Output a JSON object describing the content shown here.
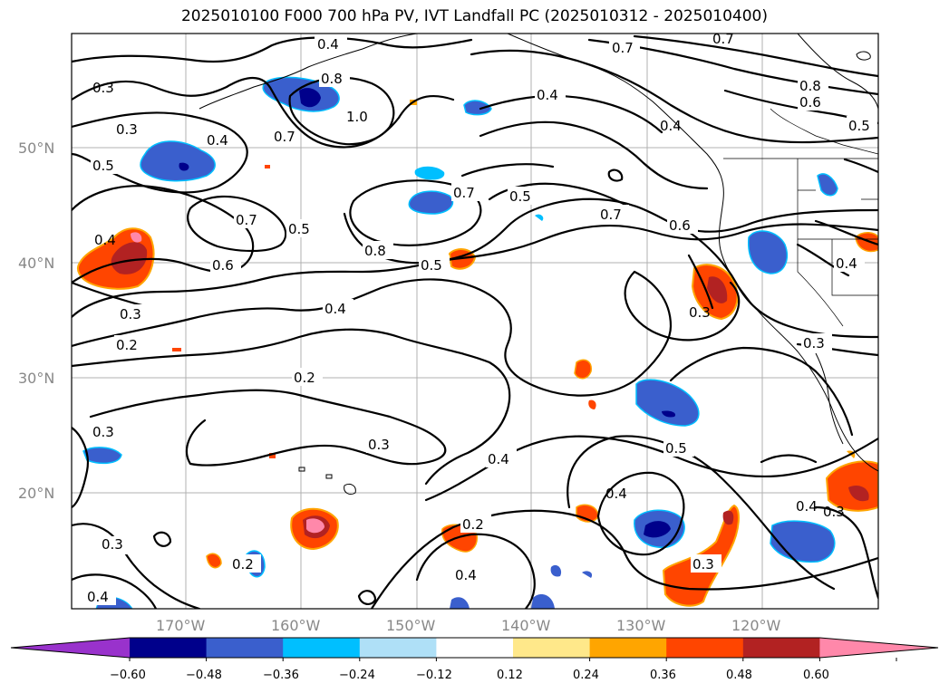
{
  "title": "2025010100 F000 700 hPa PV, IVT Landfall PC (2025010312 - 2025010400)",
  "lat_labels": [
    "50°N",
    "40°N",
    "30°N",
    "20°N"
  ],
  "lon_labels": [
    "170°W",
    "160°W",
    "150°W",
    "140°W",
    "130°W",
    "120°W"
  ],
  "contour_labels": [
    "0.4",
    "0.7",
    "0.7",
    "0.3",
    "0.8",
    "0.4",
    "0.8",
    "0.6",
    "0.5",
    "0.3",
    "1.0",
    "0.7",
    "0.4",
    "0.5",
    "0.4",
    "0.7",
    "0.5",
    "0.7",
    "0.6",
    "0.7",
    "0.5",
    "0.8",
    "0.6",
    "0.5",
    "0.4",
    "0.4",
    "0.3",
    "0.3",
    "0.3",
    "0.4",
    "0.2",
    "0.2",
    "0.3",
    "0.3",
    "0.4",
    "0.5",
    "0.4",
    "0.4",
    "0.3",
    "0.3",
    "0.2",
    "0.2",
    "0.3",
    "0.4",
    "0.4"
  ],
  "colorbar": {
    "ticks": [
      "−0.60",
      "−0.48",
      "−0.36",
      "−0.24",
      "−0.12",
      "0.12",
      "0.24",
      "0.36",
      "0.48",
      "0.60"
    ],
    "colors": [
      "#9932cc",
      "#00008b",
      "#3a5fcd",
      "#00bfff",
      "#afe0f7",
      "#ffffff",
      "#ffe88a",
      "#ffa500",
      "#ff4500",
      "#b22222",
      "#ff88aa"
    ]
  },
  "colors": {
    "neg_strong": "#00008b",
    "neg_mid": "#3a5fcd",
    "neg_light": "#00bfff",
    "pos_light": "#ffa500",
    "pos_mid": "#ff4500",
    "pos_strong": "#b22222",
    "pos_max": "#ff88aa"
  }
}
